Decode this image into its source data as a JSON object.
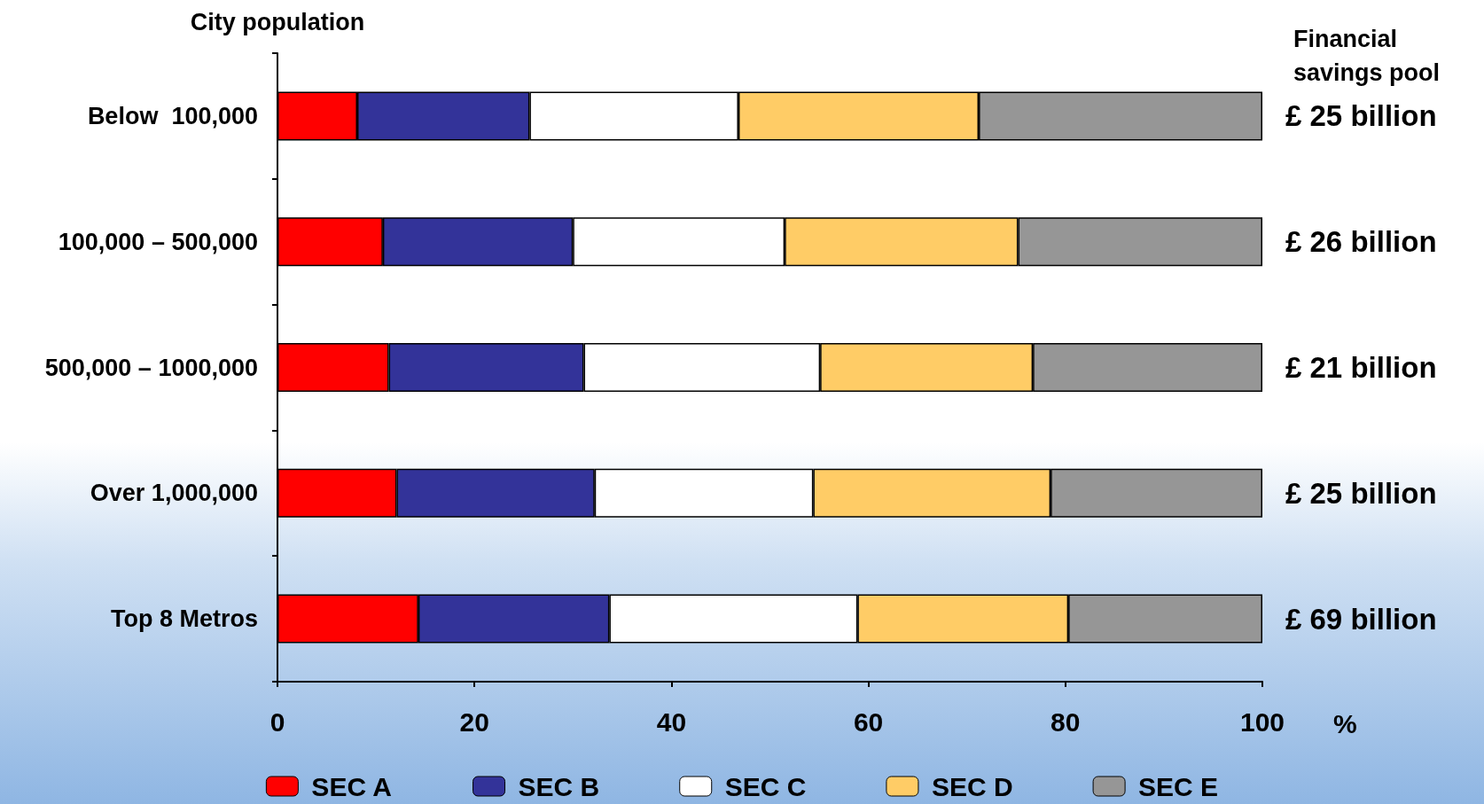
{
  "chart_data": {
    "type": "bar",
    "orientation": "horizontal",
    "stacked": true,
    "ylabel": "City population",
    "xlabel": "%",
    "categories": [
      "Below  100,000",
      "100,000 – 500,000",
      "500,000 – 1000,000",
      "Over 1,000,000",
      "Top 8 Metros"
    ],
    "series": [
      {
        "name": "SEC A",
        "color": "#ff0000",
        "values": [
          8.1,
          10.7,
          11.3,
          12.1,
          14.3
        ]
      },
      {
        "name": "SEC B",
        "color": "#333399",
        "values": [
          17.5,
          19.3,
          19.8,
          20.1,
          19.4
        ]
      },
      {
        "name": "SEC C",
        "color": "#ffffff",
        "values": [
          21.2,
          21.5,
          24.0,
          22.2,
          25.2
        ]
      },
      {
        "name": "SEC D",
        "color": "#ffcc66",
        "values": [
          24.4,
          23.7,
          21.6,
          24.1,
          21.4
        ]
      },
      {
        "name": "SEC E",
        "color": "#969696",
        "values": [
          28.8,
          24.8,
          23.3,
          21.5,
          19.7
        ]
      }
    ],
    "xlim": [
      0,
      100
    ],
    "xticks": [
      0,
      20,
      40,
      60,
      80,
      100
    ],
    "annotations": [
      "Financial\nsavings pool",
      "£ 25 billion",
      "£ 26 billion",
      "£ 21 billion",
      "£ 25 billion",
      "£ 69 billion"
    ],
    "legend": "bottom",
    "grid": false
  }
}
